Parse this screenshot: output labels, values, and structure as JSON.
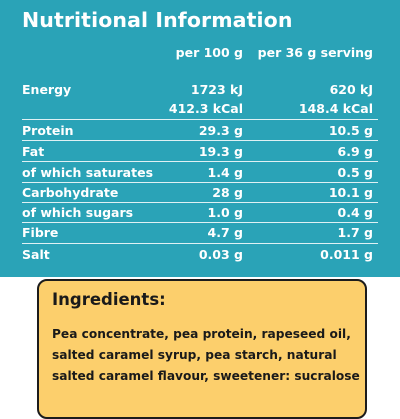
{
  "nutrition": {
    "title": "Nutritional Information",
    "col_per100": "per 100 g",
    "col_serving": "per 36 g serving",
    "rows": [
      {
        "label": "Energy",
        "per100": "1723 kJ",
        "serving": "620 kJ"
      },
      {
        "label": "",
        "per100": "412.3 kCal",
        "serving": "148.4 kCal"
      },
      {
        "label": "Protein",
        "per100": "29.3 g",
        "serving": "10.5 g"
      },
      {
        "label": "Fat",
        "per100": "19.3 g",
        "serving": "6.9 g"
      },
      {
        "label": "of which saturates",
        "per100": "1.4 g",
        "serving": "0.5 g"
      },
      {
        "label": "Carbohydrate",
        "per100": "28 g",
        "serving": "10.1 g"
      },
      {
        "label": "of which sugars",
        "per100": "1.0 g",
        "serving": "0.4 g"
      },
      {
        "label": "Fibre",
        "per100": "4.7 g",
        "serving": "1.7 g"
      },
      {
        "label": "Salt",
        "per100": "0.03 g",
        "serving": "0.011 g"
      }
    ]
  },
  "ingredients": {
    "title": "Ingredients:",
    "lines": [
      "Pea concentrate, pea protein, rapeseed oil,",
      "salted caramel syrup, pea starch, natural",
      "salted caramel flavour, sweetener: sucralose"
    ]
  },
  "colors": {
    "panel_background": "#2aa3b7",
    "ingredients_background": "#fccf6c",
    "text_light": "#ffffff",
    "text_dark": "#1a1a1a"
  }
}
